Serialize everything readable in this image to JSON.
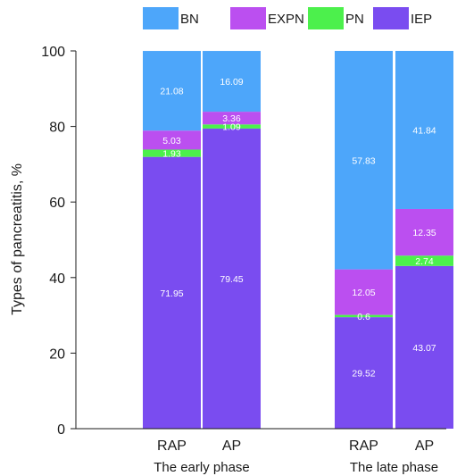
{
  "chart_data": {
    "type": "bar",
    "stacked": true,
    "ylabel": "Types of pancreatitis, %",
    "ylim": [
      0,
      100
    ],
    "yticks": [
      0,
      20,
      40,
      60,
      80,
      100
    ],
    "legend_position": "top",
    "groups": [
      {
        "label": "The early phase",
        "categories": [
          "RAP",
          "AP"
        ]
      },
      {
        "label": "The late phase",
        "categories": [
          "RAP",
          "AP"
        ]
      }
    ],
    "categories": [
      "RAP",
      "AP",
      "RAP",
      "AP"
    ],
    "series": [
      {
        "name": "IEP",
        "color": "#7a4cf0",
        "values": [
          71.95,
          79.45,
          29.52,
          43.07
        ],
        "labels": [
          "71.95",
          "79.45",
          "29.52",
          "43.07"
        ]
      },
      {
        "name": "PN",
        "color": "#4cf04c",
        "values": [
          1.93,
          1.09,
          0.6,
          2.74
        ],
        "labels": [
          "1.93",
          "1.09",
          "0.6",
          "2.74"
        ]
      },
      {
        "name": "EXPN",
        "color": "#bb4ff0",
        "values": [
          5.03,
          3.36,
          12.05,
          12.35
        ],
        "labels": [
          "5.03",
          "3.36",
          "12.05",
          "12.35"
        ]
      },
      {
        "name": "BN",
        "color": "#4da6fa",
        "values": [
          21.08,
          16.09,
          57.83,
          41.84
        ],
        "labels": [
          "21.08",
          "16.09",
          "57.83",
          "41.84"
        ]
      }
    ],
    "legend_order": [
      "BN",
      "EXPN",
      "PN",
      "IEP"
    ]
  }
}
